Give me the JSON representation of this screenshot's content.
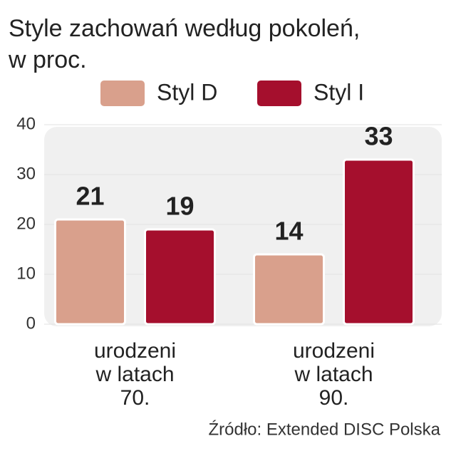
{
  "chart_data": {
    "type": "bar",
    "title_lines": [
      "Style zachowań według pokoleń,",
      "w proc."
    ],
    "categories": [
      [
        "urodzeni",
        "w latach",
        "70."
      ],
      [
        "urodzeni",
        "w latach",
        "90."
      ]
    ],
    "series": [
      {
        "name": "Styl D",
        "color": "#d9a08c",
        "values": [
          21,
          14
        ]
      },
      {
        "name": "Styl I",
        "color": "#a50f2d",
        "values": [
          19,
          33
        ]
      }
    ],
    "ylim": [
      0,
      40
    ],
    "yticks": [
      0,
      10,
      20,
      30,
      40
    ],
    "grid": true,
    "source": "Źródło: Extended DISC Polska"
  }
}
